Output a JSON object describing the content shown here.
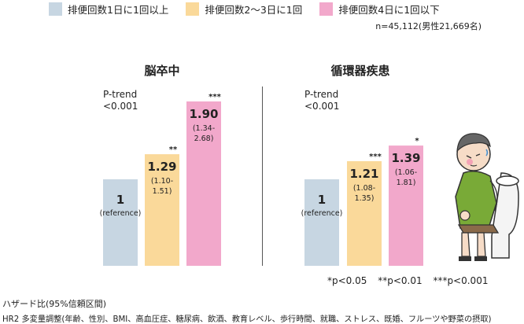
{
  "legend": [
    {
      "label": "排便回数1日に1回以上",
      "color": "#c7d6e2"
    },
    {
      "label": "排便回数2〜3日に1回",
      "color": "#fad99a"
    },
    {
      "label": "排便回数4日に1回以下",
      "color": "#f2a8cb"
    }
  ],
  "sample_note": "n=45,112(男性21,669名)",
  "significance_legend": [
    "*p<0.05",
    "**p<0.01",
    "***p<0.001"
  ],
  "footnotes": {
    "line1": "ハザード比(95%信頼区間)",
    "line2": "HR2 多変量調整(年齢、性別、BMI、高血圧症、糖尿病、飲酒、教育レベル、歩行時間、就職、ストレス、既婚、フルーツや野菜の摂取)"
  },
  "chart_data": [
    {
      "type": "bar",
      "title": "脳卒中",
      "trend_text": [
        "P-trend",
        "<0.001"
      ],
      "categories": [
        "排便回数1日に1回以上",
        "排便回数2〜3日に1回",
        "排便回数4日に1回以下"
      ],
      "values": [
        1.0,
        1.29,
        1.9
      ],
      "value_labels": [
        "1",
        "1.29",
        "1.90"
      ],
      "ci_labels": [
        "(reference)",
        "(1.10-\n1.51)",
        "(1.34-\n2.68)"
      ],
      "significance": [
        "",
        "**",
        "***"
      ],
      "colors": [
        "#c7d6e2",
        "#fad99a",
        "#f2a8cb"
      ],
      "ylim": [
        0,
        2.0
      ],
      "grid": false,
      "legend_position": "top"
    },
    {
      "type": "bar",
      "title": "循環器疾患",
      "trend_text": [
        "P-trend",
        "<0.001"
      ],
      "categories": [
        "排便回数1日に1回以上",
        "排便回数2〜3日に1回",
        "排便回数4日に1回以下"
      ],
      "values": [
        1.0,
        1.21,
        1.39
      ],
      "value_labels": [
        "1",
        "1.21",
        "1.39"
      ],
      "ci_labels": [
        "(reference)",
        "(1.08-\n1.35)",
        "(1.06-\n1.81)"
      ],
      "significance": [
        "",
        "***",
        "*"
      ],
      "colors": [
        "#c7d6e2",
        "#fad99a",
        "#f2a8cb"
      ],
      "ylim": [
        0,
        2.0
      ],
      "grid": false,
      "legend_position": "top"
    }
  ],
  "illustration": {
    "icon": "constipated-man-on-toilet-icon"
  }
}
